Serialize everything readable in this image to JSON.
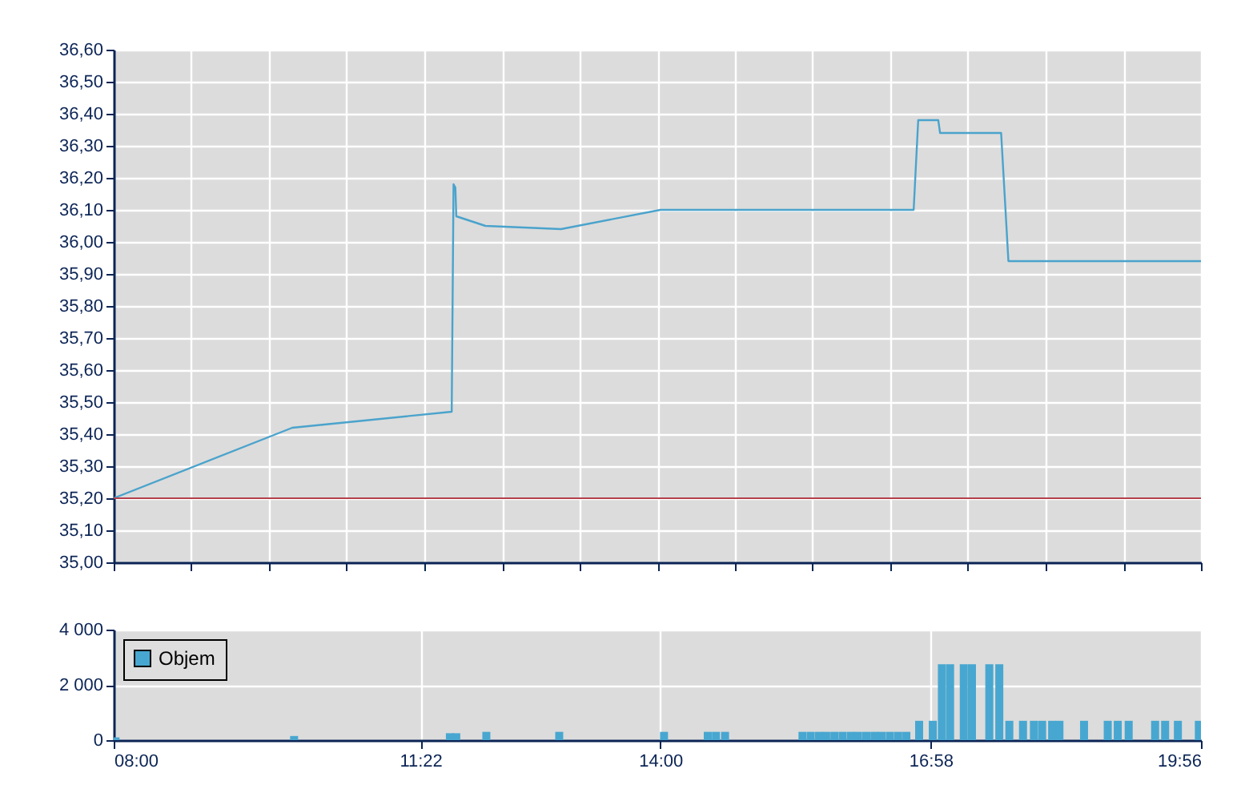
{
  "chart_data": [
    {
      "type": "line",
      "x": [
        8.0,
        9.96,
        11.71,
        11.73,
        11.75,
        11.76,
        12.08,
        12.91,
        14.0,
        16.78,
        16.83,
        17.05,
        17.07,
        17.74,
        17.82,
        19.9333
      ],
      "series": [
        {
          "color": "#4aa3cc",
          "values": [
            35.2,
            35.42,
            35.47,
            36.18,
            36.17,
            36.08,
            36.05,
            36.04,
            36.1,
            36.1,
            36.38,
            36.38,
            36.34,
            36.34,
            35.94,
            35.94
          ]
        }
      ],
      "xlim": [
        8.0,
        19.9333
      ],
      "xticks": [
        {
          "value": 8.0,
          "label": null
        },
        {
          "value": 8.852,
          "label": null
        },
        {
          "value": 9.705,
          "label": null
        },
        {
          "value": 10.557,
          "label": null
        },
        {
          "value": 11.41,
          "label": null
        },
        {
          "value": 12.262,
          "label": null
        },
        {
          "value": 13.114,
          "label": null
        },
        {
          "value": 13.967,
          "label": null
        },
        {
          "value": 14.819,
          "label": null
        },
        {
          "value": 15.671,
          "label": null
        },
        {
          "value": 16.524,
          "label": null
        },
        {
          "value": 17.376,
          "label": null
        },
        {
          "value": 18.229,
          "label": null
        },
        {
          "value": 19.081,
          "label": null
        },
        {
          "value": 19.9333,
          "label": null
        }
      ],
      "ylim": [
        35.0,
        36.6
      ],
      "yticks": [
        {
          "value": 35.0,
          "label": "35,00"
        },
        {
          "value": 35.1,
          "label": "35,10"
        },
        {
          "value": 35.2,
          "label": "35,20"
        },
        {
          "value": 35.3,
          "label": "35,30"
        },
        {
          "value": 35.4,
          "label": "35,40"
        },
        {
          "value": 35.5,
          "label": "35,50"
        },
        {
          "value": 35.6,
          "label": "35,60"
        },
        {
          "value": 35.7,
          "label": "35,70"
        },
        {
          "value": 35.8,
          "label": "35,80"
        },
        {
          "value": 35.9,
          "label": "35,90"
        },
        {
          "value": 36.0,
          "label": "36,00"
        },
        {
          "value": 36.1,
          "label": "36,10"
        },
        {
          "value": 36.2,
          "label": "36,20"
        },
        {
          "value": 36.3,
          "label": "36,30"
        },
        {
          "value": 36.4,
          "label": "36,40"
        },
        {
          "value": 36.5,
          "label": "36,50"
        },
        {
          "value": 36.6,
          "label": "36,60"
        }
      ],
      "ref_lines": [
        {
          "axis": "y",
          "value": 35.2,
          "color": "#b5404a"
        }
      ],
      "grid": true,
      "tick_labels": "y"
    },
    {
      "type": "bar",
      "x": [
        8.02,
        9.98,
        11.69,
        11.76,
        12.09,
        12.89,
        14.04,
        14.52,
        14.61,
        14.71,
        15.56,
        15.65,
        15.74,
        15.82,
        15.91,
        16.0,
        16.09,
        16.17,
        16.26,
        16.35,
        16.43,
        16.52,
        16.61,
        16.7,
        16.84,
        16.99,
        17.09,
        17.18,
        17.33,
        17.42,
        17.61,
        17.72,
        17.83,
        17.98,
        18.1,
        18.19,
        18.3,
        18.38,
        18.65,
        18.91,
        19.02,
        19.14,
        19.43,
        19.54,
        19.68,
        19.91
      ],
      "series": [
        {
          "name": "Objem",
          "color": "#48a7d0",
          "values": [
            100,
            150,
            250,
            250,
            300,
            300,
            300,
            300,
            300,
            300,
            300,
            300,
            300,
            300,
            300,
            300,
            300,
            300,
            300,
            300,
            300,
            300,
            300,
            300,
            700,
            700,
            2750,
            2750,
            2750,
            2750,
            2750,
            2750,
            700,
            700,
            700,
            700,
            700,
            700,
            700,
            700,
            700,
            700,
            700,
            700,
            700,
            700
          ]
        }
      ],
      "xlim": [
        8.0,
        19.9333
      ],
      "xticks": [
        {
          "value": 8.0,
          "label": "08:00"
        },
        {
          "value": 11.3667,
          "label": "11:22"
        },
        {
          "value": 14.0,
          "label": "14:00"
        },
        {
          "value": 16.9667,
          "label": "16:58"
        },
        {
          "value": 19.9333,
          "label": "19:56"
        }
      ],
      "ylim": [
        0,
        4000
      ],
      "yticks": [
        {
          "value": 0,
          "label": "0"
        },
        {
          "value": 2000,
          "label": "2 000"
        },
        {
          "value": 4000,
          "label": "4 000"
        }
      ],
      "grid": true,
      "legend": "top left"
    }
  ]
}
